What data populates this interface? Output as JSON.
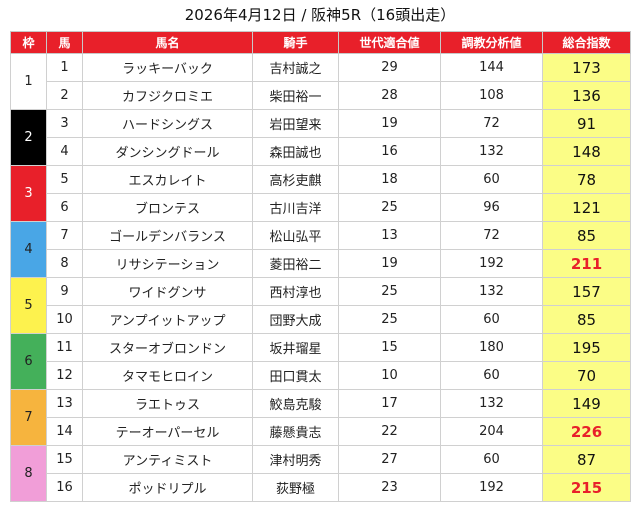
{
  "title": "2026年4月12日 / 阪神5R（16頭出走）",
  "headers": [
    "枠",
    "馬",
    "馬名",
    "騎手",
    "世代適合値",
    "調教分析値",
    "総合指数"
  ],
  "frame_colors": {
    "1": "#ffffff",
    "2": "#000000",
    "3": "#e8202a",
    "4": "#49a6e6",
    "5": "#fdf24e",
    "6": "#44b05a",
    "7": "#f6b43e",
    "8": "#f19ed8"
  },
  "highlight_color": "#fbfd86",
  "rows": [
    {
      "frame": "1",
      "num": "1",
      "name": "ラッキーバック",
      "jockey": "吉村誠之",
      "gen": "29",
      "train": "144",
      "score": "173",
      "high": false
    },
    {
      "frame": "1",
      "num": "2",
      "name": "カフジクロミエ",
      "jockey": "柴田裕一",
      "gen": "28",
      "train": "108",
      "score": "136",
      "high": false
    },
    {
      "frame": "2",
      "num": "3",
      "name": "ハードシングス",
      "jockey": "岩田望来",
      "gen": "19",
      "train": "72",
      "score": "91",
      "high": false
    },
    {
      "frame": "2",
      "num": "4",
      "name": "ダンシングドール",
      "jockey": "森田誠也",
      "gen": "16",
      "train": "132",
      "score": "148",
      "high": false
    },
    {
      "frame": "3",
      "num": "5",
      "name": "エスカレイト",
      "jockey": "高杉吏麒",
      "gen": "18",
      "train": "60",
      "score": "78",
      "high": false
    },
    {
      "frame": "3",
      "num": "6",
      "name": "ブロンテス",
      "jockey": "古川吉洋",
      "gen": "25",
      "train": "96",
      "score": "121",
      "high": false
    },
    {
      "frame": "4",
      "num": "7",
      "name": "ゴールデンバランス",
      "jockey": "松山弘平",
      "gen": "13",
      "train": "72",
      "score": "85",
      "high": false
    },
    {
      "frame": "4",
      "num": "8",
      "name": "リサシテーション",
      "jockey": "菱田裕二",
      "gen": "19",
      "train": "192",
      "score": "211",
      "high": true
    },
    {
      "frame": "5",
      "num": "9",
      "name": "ワイドグンサ",
      "jockey": "西村淳也",
      "gen": "25",
      "train": "132",
      "score": "157",
      "high": false
    },
    {
      "frame": "5",
      "num": "10",
      "name": "アンプイットアップ",
      "jockey": "団野大成",
      "gen": "25",
      "train": "60",
      "score": "85",
      "high": false
    },
    {
      "frame": "6",
      "num": "11",
      "name": "スターオブロンドン",
      "jockey": "坂井瑠星",
      "gen": "15",
      "train": "180",
      "score": "195",
      "high": false
    },
    {
      "frame": "6",
      "num": "12",
      "name": "タマモヒロイン",
      "jockey": "田口貫太",
      "gen": "10",
      "train": "60",
      "score": "70",
      "high": false
    },
    {
      "frame": "7",
      "num": "13",
      "name": "ラエトゥス",
      "jockey": "鮫島克駿",
      "gen": "17",
      "train": "132",
      "score": "149",
      "high": false
    },
    {
      "frame": "7",
      "num": "14",
      "name": "テーオーパーセル",
      "jockey": "藤懸貴志",
      "gen": "22",
      "train": "204",
      "score": "226",
      "high": true
    },
    {
      "frame": "8",
      "num": "15",
      "name": "アンティミスト",
      "jockey": "津村明秀",
      "gen": "27",
      "train": "60",
      "score": "87",
      "high": false
    },
    {
      "frame": "8",
      "num": "16",
      "name": "ポッドリプル",
      "jockey": "荻野極",
      "gen": "23",
      "train": "192",
      "score": "215",
      "high": true
    }
  ]
}
